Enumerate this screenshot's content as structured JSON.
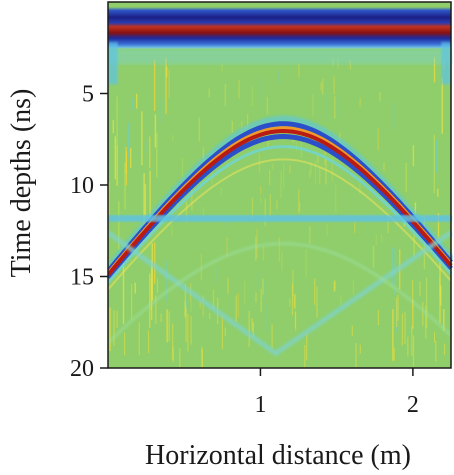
{
  "chart_data": {
    "type": "heatmap",
    "title": "",
    "xlabel": "Horizontal distance (m)",
    "ylabel": "Time depths (ns)",
    "xlim": [
      0,
      2.25
    ],
    "ylim": [
      20,
      0
    ],
    "x_ticks": [
      1,
      2
    ],
    "y_ticks": [
      5,
      10,
      15,
      20
    ],
    "colormap": "jet",
    "background_color": "#8fce6a",
    "features": {
      "direct_wave_band_ns": [
        0.6,
        2.1
      ],
      "hyperbola_apex": {
        "x_m": 1.15,
        "t_ns": 6.8
      },
      "hyperbola_edge": {
        "x_m": 0.0,
        "t_ns": 14.8
      },
      "horizontal_reflector_ns": 11.8,
      "lower_v_apex": {
        "x_m": 1.1,
        "t_ns": 19.2
      }
    }
  }
}
